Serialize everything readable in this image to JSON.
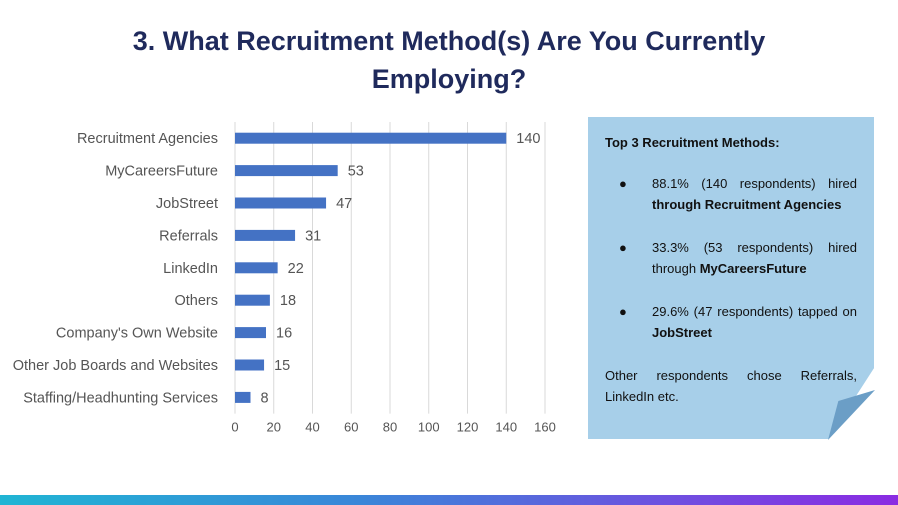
{
  "title_line1": "3. What Recruitment Method(s) Are You Currently",
  "title_line2": "Employing?",
  "chart_data": {
    "type": "bar",
    "orientation": "horizontal",
    "categories": [
      "Recruitment Agencies",
      "MyCareersFuture",
      "JobStreet",
      "Referrals",
      "LinkedIn",
      "Others",
      "Company's Own Website",
      "Other Job Boards and Websites",
      "Staffing/Headhunting Services"
    ],
    "values": [
      140,
      53,
      47,
      31,
      22,
      18,
      16,
      15,
      8
    ],
    "xlim": [
      0,
      160
    ],
    "xticks": [
      0,
      20,
      40,
      60,
      80,
      100,
      120,
      140,
      160
    ],
    "grid": true,
    "bar_color": "#4472c4",
    "data_labels": true,
    "legend": "none"
  },
  "note": {
    "heading": "Top 3 Recruitment Methods:",
    "bullet_glyph": "●",
    "items": [
      {
        "text": "88.1% (140 respondents) hired ",
        "bold": "through Recruitment Agencies",
        "after": ""
      },
      {
        "text": "33.3% (53 respondents) hired through ",
        "bold": "MyCareersFuture",
        "after": ""
      },
      {
        "text": "29.6% (47 respondents) tapped on ",
        "bold": "JobStreet",
        "after": ""
      }
    ],
    "footer": "Other respondents chose Referrals, LinkedIn etc."
  },
  "colors": {
    "title": "#1f2a5c",
    "bar": "#4472c4",
    "note_background": "#a7cfe9",
    "note_fold": "#6b9ec6"
  }
}
